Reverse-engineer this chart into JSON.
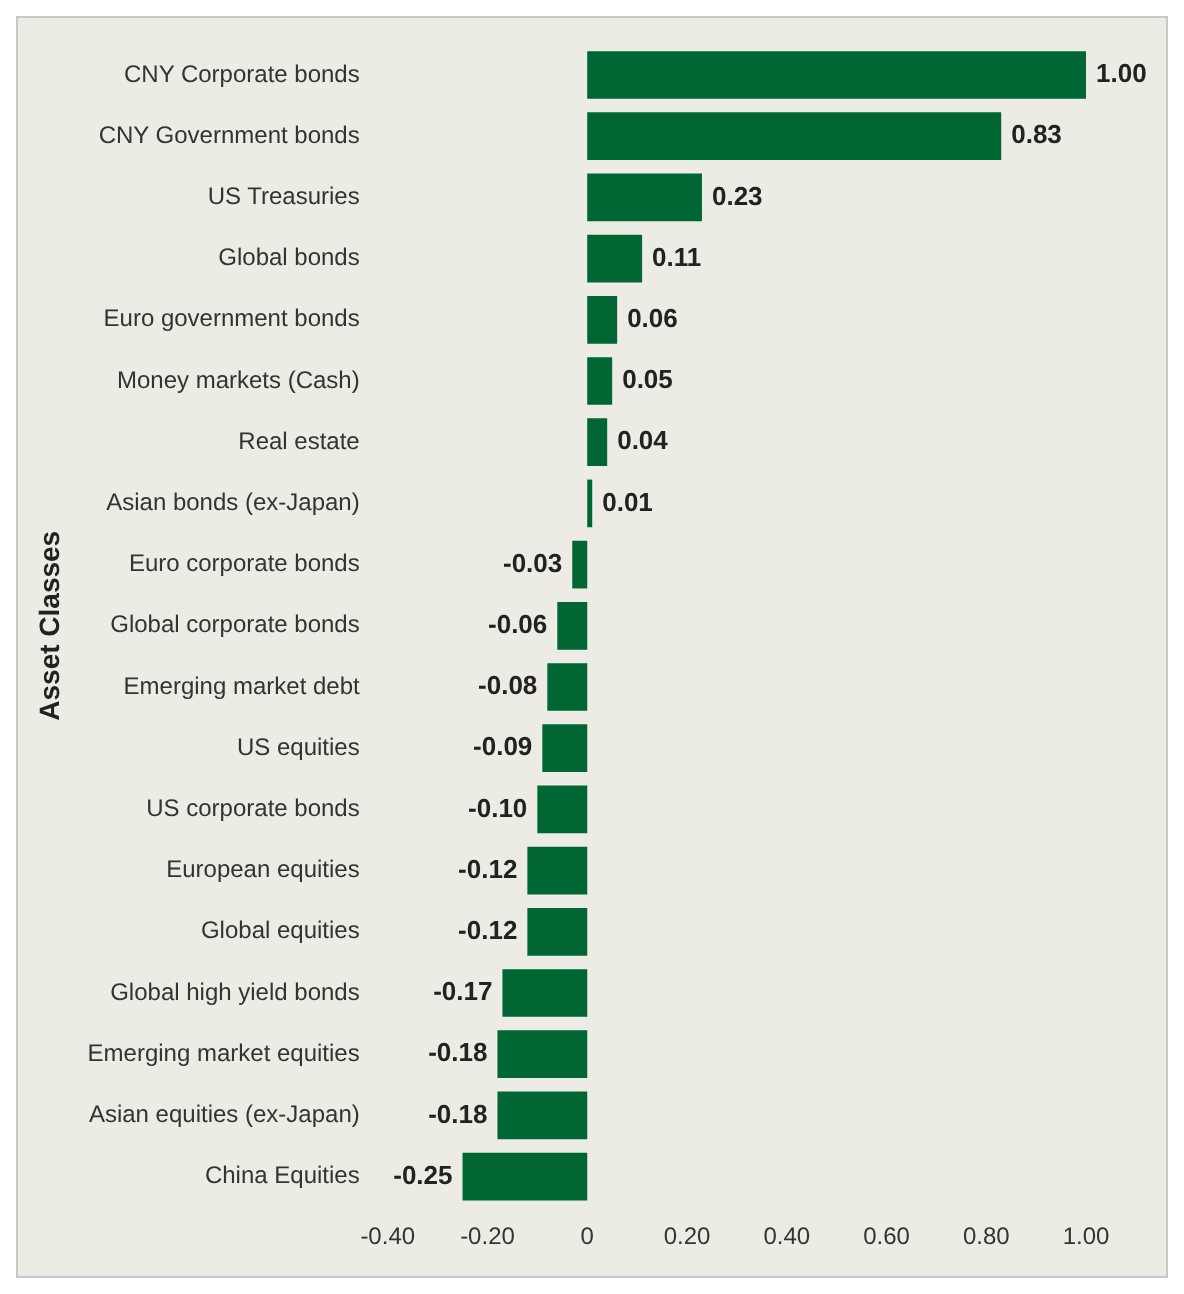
{
  "chart_data": {
    "type": "bar",
    "orientation": "horizontal",
    "ylabel": "Asset Classes",
    "categories": [
      "CNY Corporate bonds",
      "CNY Government bonds",
      "US Treasuries",
      "Global bonds",
      "Euro government bonds",
      "Money markets (Cash)",
      "Real estate",
      "Asian bonds (ex-Japan)",
      "Euro corporate bonds",
      "Global corporate bonds",
      "Emerging market debt",
      "US equities",
      "US corporate bonds",
      "European equities",
      "Global equities",
      "Global high yield bonds",
      "Emerging market equities",
      "Asian equities (ex-Japan)",
      "China Equities"
    ],
    "values": [
      1.0,
      0.83,
      0.23,
      0.11,
      0.06,
      0.05,
      0.04,
      0.01,
      -0.03,
      -0.06,
      -0.08,
      -0.09,
      -0.1,
      -0.12,
      -0.12,
      -0.17,
      -0.18,
      -0.18,
      -0.25
    ],
    "value_labels": [
      "1.00",
      "0.83",
      "0.23",
      "0.11",
      "0.06",
      "0.05",
      "0.04",
      "0.01",
      "-0.03",
      "-0.06",
      "-0.08",
      "-0.09",
      "-0.10",
      "-0.12",
      "-0.12",
      "-0.17",
      "-0.18",
      "-0.18",
      "-0.25"
    ],
    "color": "#006633",
    "xlim": [
      -0.4,
      1.0
    ],
    "xticks": [
      {
        "value": -0.4,
        "label": "-0.40"
      },
      {
        "value": -0.2,
        "label": "-0.20"
      },
      0,
      {
        "value": 0.2,
        "label": "0.20"
      },
      {
        "value": 0.4,
        "label": "0.40"
      },
      {
        "value": 0.6,
        "label": "0.60"
      },
      {
        "value": 0.8,
        "label": "0.80"
      },
      {
        "value": 1.0,
        "label": "1.00"
      }
    ],
    "grid": false,
    "legend": false
  }
}
